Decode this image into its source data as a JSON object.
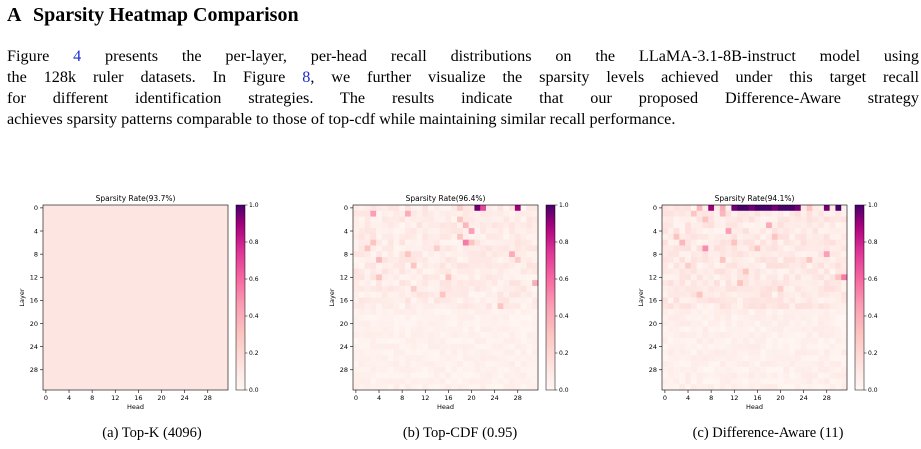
{
  "section": {
    "letter": "A",
    "title": "Sparsity Heatmap Comparison"
  },
  "paragraph": {
    "l1a": "Figure ",
    "l1ref": "4",
    "l1b": " presents the per-layer, per-head recall distributions on the LLaMA-3.1-8B-instruct model using",
    "l2a": "the 128k ruler datasets. In Figure ",
    "l2ref": "8",
    "l2b": ", we further visualize the sparsity levels achieved under this target recall",
    "l3": "for different identification strategies. The results indicate that our proposed Difference-Aware strategy",
    "l4": "achieves sparsity patterns comparable to those of top-cdf while maintaining similar recall performance."
  },
  "colors": {
    "low": "#fff5f0",
    "mid": "#f768a1",
    "high": "#49006a"
  },
  "chart_data": [
    {
      "type": "heatmap",
      "title": "Sparsity Rate(93.7%)",
      "xlabel": "Head",
      "ylabel": "Layer",
      "xticks": [
        "0",
        "4",
        "8",
        "12",
        "16",
        "20",
        "24",
        "28"
      ],
      "yticks": [
        "0",
        "4",
        "8",
        "12",
        "16",
        "20",
        "24",
        "28"
      ],
      "colorbar_ticks": [
        "0.0",
        "0.2",
        "0.4",
        "0.6",
        "0.8",
        "1.0"
      ],
      "vmin": 0,
      "vmax": 1,
      "rows": 32,
      "cols": 32,
      "uniform_value": 0.12,
      "caption": "(a) Top-K (4096)"
    },
    {
      "type": "heatmap",
      "title": "Sparsity Rate(96.4%)",
      "xlabel": "Head",
      "ylabel": "Layer",
      "xticks": [
        "0",
        "4",
        "8",
        "12",
        "16",
        "20",
        "24",
        "28"
      ],
      "yticks": [
        "0",
        "4",
        "8",
        "12",
        "16",
        "20",
        "24",
        "28"
      ],
      "colorbar_ticks": [
        "0.0",
        "0.2",
        "0.4",
        "0.6",
        "0.8",
        "1.0"
      ],
      "vmin": 0,
      "vmax": 1,
      "rows": 32,
      "cols": 32,
      "base_value": 0.05,
      "seed": 7,
      "hot_cells": [
        [
          0,
          21,
          0.95
        ],
        [
          0,
          22,
          0.7
        ],
        [
          0,
          28,
          0.9
        ],
        [
          0,
          18,
          0.25
        ],
        [
          1,
          3,
          0.45
        ],
        [
          1,
          9,
          0.4
        ],
        [
          2,
          18,
          0.3
        ],
        [
          3,
          19,
          0.35
        ],
        [
          4,
          20,
          0.45
        ],
        [
          5,
          18,
          0.3
        ],
        [
          6,
          19,
          0.55
        ],
        [
          6,
          20,
          0.3
        ],
        [
          6,
          3,
          0.3
        ],
        [
          7,
          2,
          0.3
        ],
        [
          7,
          14,
          0.25
        ],
        [
          8,
          27,
          0.4
        ],
        [
          8,
          9,
          0.3
        ],
        [
          9,
          4,
          0.35
        ],
        [
          9,
          28,
          0.25
        ],
        [
          10,
          10,
          0.3
        ],
        [
          12,
          4,
          0.3
        ],
        [
          12,
          16,
          0.3
        ],
        [
          13,
          31,
          0.4
        ],
        [
          14,
          10,
          0.25
        ],
        [
          15,
          15,
          0.3
        ],
        [
          17,
          25,
          0.3
        ]
      ],
      "caption": "(b) Top-CDF (0.95)"
    },
    {
      "type": "heatmap",
      "title": "Sparsity Rate(94.1%)",
      "xlabel": "Head",
      "ylabel": "Layer",
      "xticks": [
        "0",
        "4",
        "8",
        "12",
        "16",
        "20",
        "24",
        "28"
      ],
      "yticks": [
        "0",
        "4",
        "8",
        "12",
        "16",
        "20",
        "24",
        "28"
      ],
      "colorbar_ticks": [
        "0.0",
        "0.2",
        "0.4",
        "0.6",
        "0.8",
        "1.0"
      ],
      "vmin": 0,
      "vmax": 1,
      "rows": 32,
      "cols": 32,
      "base_value": 0.06,
      "seed": 19,
      "hot_cells": [
        [
          0,
          8,
          0.9
        ],
        [
          0,
          12,
          0.95
        ],
        [
          0,
          13,
          1.0
        ],
        [
          0,
          14,
          1.0
        ],
        [
          0,
          15,
          0.95
        ],
        [
          0,
          16,
          1.0
        ],
        [
          0,
          17,
          1.0
        ],
        [
          0,
          18,
          1.0
        ],
        [
          0,
          19,
          0.95
        ],
        [
          0,
          20,
          1.0
        ],
        [
          0,
          21,
          1.0
        ],
        [
          0,
          22,
          1.0
        ],
        [
          0,
          23,
          0.95
        ],
        [
          0,
          28,
          0.95
        ],
        [
          0,
          30,
          1.0
        ],
        [
          0,
          6,
          0.35
        ],
        [
          0,
          10,
          0.4
        ],
        [
          0,
          25,
          0.3
        ],
        [
          1,
          5,
          0.3
        ],
        [
          1,
          10,
          0.35
        ],
        [
          2,
          7,
          0.3
        ],
        [
          3,
          18,
          0.4
        ],
        [
          4,
          11,
          0.45
        ],
        [
          5,
          19,
          0.3
        ],
        [
          5,
          2,
          0.3
        ],
        [
          6,
          3,
          0.35
        ],
        [
          6,
          12,
          0.3
        ],
        [
          7,
          7,
          0.5
        ],
        [
          7,
          16,
          0.3
        ],
        [
          8,
          28,
          0.45
        ],
        [
          9,
          10,
          0.3
        ],
        [
          9,
          25,
          0.3
        ],
        [
          10,
          4,
          0.25
        ],
        [
          11,
          14,
          0.3
        ],
        [
          12,
          30,
          0.3
        ],
        [
          12,
          31,
          0.55
        ],
        [
          13,
          13,
          0.3
        ],
        [
          14,
          20,
          0.25
        ],
        [
          15,
          6,
          0.3
        ]
      ],
      "caption": "(c) Difference-Aware (11)"
    }
  ]
}
